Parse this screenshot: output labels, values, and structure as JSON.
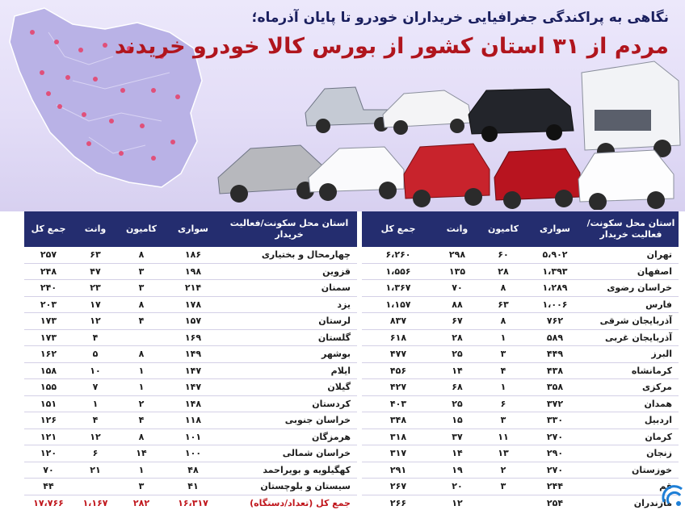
{
  "header": {
    "subtitle": "نگاهی به پراکندگی جغرافیایی خریداران خودرو تا پایان آذرماه؛",
    "title": "مردم از ۳۱ استان کشور از بورس کالا خودرو خریدند"
  },
  "table": {
    "headers": {
      "province": "استان محل سکونت/فعالیت خریدار",
      "car": "سواری",
      "truck": "کامیون",
      "van": "وانت",
      "total": "جمع کل"
    },
    "right_rows": [
      {
        "province": "تهران",
        "car": "۵،۹۰۲",
        "truck": "۶۰",
        "van": "۲۹۸",
        "total": "۶،۲۶۰"
      },
      {
        "province": "اصفهان",
        "car": "۱،۳۹۳",
        "truck": "۲۸",
        "van": "۱۳۵",
        "total": "۱،۵۵۶"
      },
      {
        "province": "خراسان رضوی",
        "car": "۱،۲۸۹",
        "truck": "۸",
        "van": "۷۰",
        "total": "۱،۳۶۷"
      },
      {
        "province": "فارس",
        "car": "۱،۰۰۶",
        "truck": "۶۳",
        "van": "۸۸",
        "total": "۱،۱۵۷"
      },
      {
        "province": "آذربایجان شرقی",
        "car": "۷۶۲",
        "truck": "۸",
        "van": "۶۷",
        "total": "۸۳۷"
      },
      {
        "province": "آذربایجان غربی",
        "car": "۵۸۹",
        "truck": "۱",
        "van": "۲۸",
        "total": "۶۱۸"
      },
      {
        "province": "البرز",
        "car": "۴۴۹",
        "truck": "۳",
        "van": "۲۵",
        "total": "۴۷۷"
      },
      {
        "province": "کرمانشاه",
        "car": "۴۳۸",
        "truck": "۴",
        "van": "۱۴",
        "total": "۴۵۶"
      },
      {
        "province": "مرکزی",
        "car": "۳۵۸",
        "truck": "۱",
        "van": "۶۸",
        "total": "۴۲۷"
      },
      {
        "province": "همدان",
        "car": "۳۷۲",
        "truck": "۶",
        "van": "۲۵",
        "total": "۴۰۳"
      },
      {
        "province": "اردبیل",
        "car": "۳۳۰",
        "truck": "۳",
        "van": "۱۵",
        "total": "۳۴۸"
      },
      {
        "province": "کرمان",
        "car": "۲۷۰",
        "truck": "۱۱",
        "van": "۳۷",
        "total": "۳۱۸"
      },
      {
        "province": "زنجان",
        "car": "۲۹۰",
        "truck": "۱۳",
        "van": "۱۴",
        "total": "۳۱۷"
      },
      {
        "province": "خوزستان",
        "car": "۲۷۰",
        "truck": "۲",
        "van": "۱۹",
        "total": "۲۹۱"
      },
      {
        "province": "قم",
        "car": "۲۴۴",
        "truck": "۳",
        "van": "۲۰",
        "total": "۲۶۷"
      },
      {
        "province": "مازندران",
        "car": "۲۵۴",
        "truck": "",
        "van": "۱۲",
        "total": "۲۶۶"
      }
    ],
    "left_rows": [
      {
        "province": "چهارمحال و بختیاری",
        "car": "۱۸۶",
        "truck": "۸",
        "van": "۶۳",
        "total": "۲۵۷"
      },
      {
        "province": "قزوین",
        "car": "۱۹۸",
        "truck": "۳",
        "van": "۴۷",
        "total": "۲۴۸"
      },
      {
        "province": "سمنان",
        "car": "۲۱۴",
        "truck": "۳",
        "van": "۲۳",
        "total": "۲۴۰"
      },
      {
        "province": "یزد",
        "car": "۱۷۸",
        "truck": "۸",
        "van": "۱۷",
        "total": "۲۰۳"
      },
      {
        "province": "لرستان",
        "car": "۱۵۷",
        "truck": "۴",
        "van": "۱۲",
        "total": "۱۷۳"
      },
      {
        "province": "گلستان",
        "car": "۱۶۹",
        "truck": "",
        "van": "۴",
        "total": "۱۷۳"
      },
      {
        "province": "بوشهر",
        "car": "۱۴۹",
        "truck": "۸",
        "van": "۵",
        "total": "۱۶۲"
      },
      {
        "province": "ایلام",
        "car": "۱۴۷",
        "truck": "۱",
        "van": "۱۰",
        "total": "۱۵۸"
      },
      {
        "province": "گیلان",
        "car": "۱۴۷",
        "truck": "۱",
        "van": "۷",
        "total": "۱۵۵"
      },
      {
        "province": "کردستان",
        "car": "۱۴۸",
        "truck": "۲",
        "van": "۱",
        "total": "۱۵۱"
      },
      {
        "province": "خراسان جنوبی",
        "car": "۱۱۸",
        "truck": "۴",
        "van": "۴",
        "total": "۱۲۶"
      },
      {
        "province": "هرمزگان",
        "car": "۱۰۱",
        "truck": "۸",
        "van": "۱۲",
        "total": "۱۲۱"
      },
      {
        "province": "خراسان شمالی",
        "car": "۱۰۰",
        "truck": "۱۴",
        "van": "۶",
        "total": "۱۲۰"
      },
      {
        "province": "کهگیلویه و بویراحمد",
        "car": "۴۸",
        "truck": "۱",
        "van": "۲۱",
        "total": "۷۰"
      },
      {
        "province": "سیستان و بلوچستان",
        "car": "۴۱",
        "truck": "۳",
        "van": "",
        "total": "۴۴"
      }
    ],
    "total_row": {
      "label": "جمع کل (تعداد/دستگاه)",
      "car": "۱۶،۳۱۷",
      "truck": "۲۸۲",
      "van": "۱،۱۶۷",
      "total": "۱۷،۷۶۶"
    }
  },
  "colors": {
    "header_bg": "#242d6f",
    "title_red": "#b0151d",
    "subtitle_navy": "#1a1f5e",
    "total_red": "#c0161c",
    "map_fill": "#b9b2e6",
    "map_dot": "#e0507a"
  },
  "icons": [
    "iran-map-icon",
    "pickup-truck-icon",
    "sedan-icon",
    "suv-icon",
    "semi-truck-icon",
    "broadcast-logo-icon"
  ]
}
